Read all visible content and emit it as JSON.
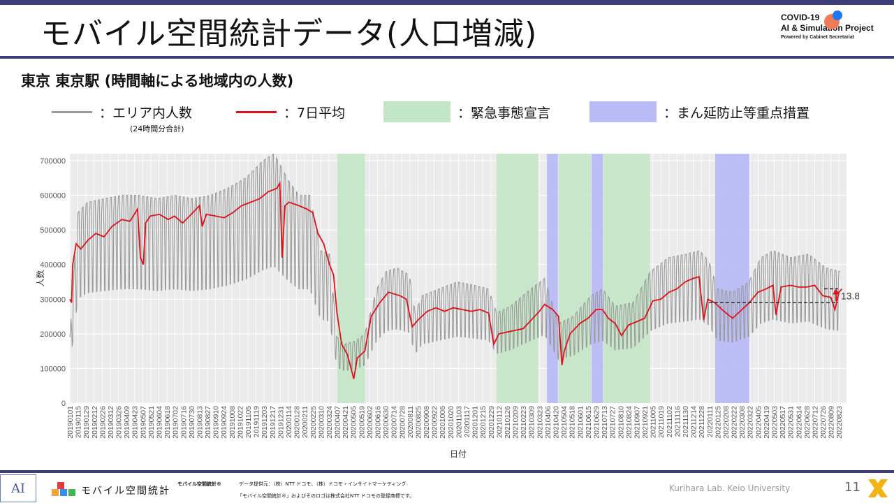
{
  "header": {
    "title": "モバイル空間統計データ(人口増減)",
    "brand_line1": "COVID-19",
    "brand_line2": "AI & Simulation Project",
    "brand_line3": "Powered by Cabinet Secretariat"
  },
  "subtitle": "東京 東京駅 (時間軸による地域内の人数)",
  "legend": {
    "raw_label": "：エリア内人数",
    "raw_note": "(24時間分合計)",
    "avg_label": "：7日平均",
    "emergency_label": "：緊急事態宣言",
    "priority_label": "：まん延防止等重点措置",
    "colors": {
      "raw": "#9a9a9a",
      "avg": "#e0101a",
      "emergency": "#c3e6c7",
      "priority": "#babaf5"
    }
  },
  "chart_data": {
    "type": "line",
    "xlabel": "日付",
    "ylabel": "人数",
    "ylim": [
      0,
      720000
    ],
    "yticks": [
      0,
      100000,
      200000,
      300000,
      400000,
      500000,
      600000,
      700000
    ],
    "ytick_labels": [
      "0",
      "100000",
      "200000",
      "300000",
      "400000",
      "500000",
      "600000",
      "700000"
    ],
    "xlim": [
      "2019-01-01",
      "2022-09-05"
    ],
    "grid": true,
    "xtick_labels": [
      "20190101",
      "20190115",
      "20190129",
      "20190212",
      "20190226",
      "20190312",
      "20190326",
      "20190409",
      "20190423",
      "20190507",
      "20190521",
      "20190604",
      "20190618",
      "20190702",
      "20190716",
      "20190730",
      "20190813",
      "20190827",
      "20190910",
      "20190924",
      "20191008",
      "20191022",
      "20191105",
      "20191119",
      "20191203",
      "20191217",
      "20191231",
      "20200114",
      "20200128",
      "20200211",
      "20200225",
      "20200310",
      "20200324",
      "20200407",
      "20200421",
      "20200505",
      "20200519",
      "20200602",
      "20200616",
      "20200630",
      "20200714",
      "20200728",
      "20200811",
      "20200825",
      "20200908",
      "20200922",
      "20201006",
      "20201020",
      "20201103",
      "20201117",
      "20201201",
      "20201215",
      "20201229",
      "20210112",
      "20210126",
      "20210209",
      "20210223",
      "20210309",
      "20210323",
      "20210406",
      "20210420",
      "20210504",
      "20210518",
      "20210601",
      "20210615",
      "20210629",
      "20210713",
      "20210727",
      "20210810",
      "20210824",
      "20210907",
      "20210921",
      "20211005",
      "20211019",
      "20211102",
      "20211116",
      "20211130",
      "20211214",
      "20211228",
      "20220111",
      "20220125",
      "20220208",
      "20220222",
      "20220308",
      "20220322",
      "20220405",
      "20220419",
      "20220503",
      "20220517",
      "20220531",
      "20220614",
      "20220628",
      "20220712",
      "20220726",
      "20220809",
      "20220823"
    ],
    "emergency_periods": [
      [
        "2020-04-07",
        "2020-05-25"
      ],
      [
        "2021-01-08",
        "2021-03-21"
      ],
      [
        "2021-04-25",
        "2021-06-20"
      ],
      [
        "2021-07-12",
        "2021-09-30"
      ]
    ],
    "priority_periods": [
      [
        "2021-04-05",
        "2021-04-24"
      ],
      [
        "2021-06-21",
        "2021-07-11"
      ],
      [
        "2022-01-21",
        "2022-03-21"
      ]
    ],
    "series": [
      {
        "name": "エリア内人数",
        "style": "raw",
        "points": [
          [
            "2019-01-01",
            190000
          ],
          [
            "2019-01-07",
            350000
          ],
          [
            "2019-01-15",
            550000
          ],
          [
            "2019-02-01",
            580000
          ],
          [
            "2019-03-01",
            590000
          ],
          [
            "2019-04-01",
            600000
          ],
          [
            "2019-05-01",
            600000
          ],
          [
            "2019-06-01",
            590000
          ],
          [
            "2019-07-01",
            600000
          ],
          [
            "2019-08-01",
            590000
          ],
          [
            "2019-09-01",
            600000
          ],
          [
            "2019-10-01",
            620000
          ],
          [
            "2019-11-01",
            650000
          ],
          [
            "2019-12-01",
            700000
          ],
          [
            "2019-12-20",
            720000
          ],
          [
            "2020-01-15",
            640000
          ],
          [
            "2020-02-01",
            600000
          ],
          [
            "2020-02-20",
            600000
          ],
          [
            "2020-03-10",
            440000
          ],
          [
            "2020-03-25",
            430000
          ],
          [
            "2020-04-07",
            190000
          ],
          [
            "2020-04-20",
            170000
          ],
          [
            "2020-05-10",
            180000
          ],
          [
            "2020-05-25",
            200000
          ],
          [
            "2020-06-15",
            330000
          ],
          [
            "2020-07-01",
            380000
          ],
          [
            "2020-07-20",
            390000
          ],
          [
            "2020-08-10",
            370000
          ],
          [
            "2020-08-20",
            260000
          ],
          [
            "2020-09-01",
            310000
          ],
          [
            "2020-10-01",
            330000
          ],
          [
            "2020-11-01",
            350000
          ],
          [
            "2020-12-01",
            340000
          ],
          [
            "2020-12-25",
            330000
          ],
          [
            "2021-01-08",
            260000
          ],
          [
            "2021-02-01",
            280000
          ],
          [
            "2021-03-01",
            320000
          ],
          [
            "2021-04-01",
            360000
          ],
          [
            "2021-04-25",
            230000
          ],
          [
            "2021-05-20",
            250000
          ],
          [
            "2021-06-20",
            310000
          ],
          [
            "2021-07-10",
            330000
          ],
          [
            "2021-08-01",
            280000
          ],
          [
            "2021-09-01",
            290000
          ],
          [
            "2021-10-01",
            380000
          ],
          [
            "2021-11-01",
            420000
          ],
          [
            "2021-12-01",
            430000
          ],
          [
            "2021-12-25",
            440000
          ],
          [
            "2022-01-10",
            410000
          ],
          [
            "2022-01-25",
            330000
          ],
          [
            "2022-02-20",
            320000
          ],
          [
            "2022-03-20",
            350000
          ],
          [
            "2022-04-10",
            420000
          ],
          [
            "2022-05-01",
            440000
          ],
          [
            "2022-06-01",
            420000
          ],
          [
            "2022-07-01",
            430000
          ],
          [
            "2022-08-01",
            390000
          ],
          [
            "2022-08-25",
            380000
          ]
        ]
      },
      {
        "name": "7日平均",
        "style": "avg",
        "points": [
          [
            "2019-01-01",
            300000
          ],
          [
            "2019-01-04",
            290000
          ],
          [
            "2019-01-06",
            400000
          ],
          [
            "2019-01-12",
            460000
          ],
          [
            "2019-01-20",
            445000
          ],
          [
            "2019-02-01",
            470000
          ],
          [
            "2019-02-15",
            490000
          ],
          [
            "2019-03-01",
            480000
          ],
          [
            "2019-03-15",
            510000
          ],
          [
            "2019-04-01",
            530000
          ],
          [
            "2019-04-15",
            525000
          ],
          [
            "2019-04-28",
            560000
          ],
          [
            "2019-05-03",
            420000
          ],
          [
            "2019-05-08",
            400000
          ],
          [
            "2019-05-12",
            520000
          ],
          [
            "2019-05-20",
            540000
          ],
          [
            "2019-06-05",
            545000
          ],
          [
            "2019-06-20",
            530000
          ],
          [
            "2019-07-01",
            540000
          ],
          [
            "2019-07-15",
            520000
          ],
          [
            "2019-07-30",
            545000
          ],
          [
            "2019-08-13",
            570000
          ],
          [
            "2019-08-18",
            510000
          ],
          [
            "2019-08-25",
            545000
          ],
          [
            "2019-09-10",
            540000
          ],
          [
            "2019-09-25",
            535000
          ],
          [
            "2019-10-10",
            550000
          ],
          [
            "2019-10-25",
            570000
          ],
          [
            "2019-11-10",
            580000
          ],
          [
            "2019-11-25",
            590000
          ],
          [
            "2019-12-10",
            610000
          ],
          [
            "2019-12-25",
            620000
          ],
          [
            "2019-12-30",
            635000
          ],
          [
            "2020-01-03",
            420000
          ],
          [
            "2020-01-08",
            570000
          ],
          [
            "2020-01-15",
            580000
          ],
          [
            "2020-02-01",
            570000
          ],
          [
            "2020-02-15",
            560000
          ],
          [
            "2020-02-25",
            550000
          ],
          [
            "2020-03-05",
            490000
          ],
          [
            "2020-03-15",
            460000
          ],
          [
            "2020-03-25",
            400000
          ],
          [
            "2020-04-01",
            370000
          ],
          [
            "2020-04-07",
            260000
          ],
          [
            "2020-04-15",
            170000
          ],
          [
            "2020-04-25",
            140000
          ],
          [
            "2020-05-06",
            70000
          ],
          [
            "2020-05-12",
            130000
          ],
          [
            "2020-05-25",
            150000
          ],
          [
            "2020-06-05",
            250000
          ],
          [
            "2020-06-20",
            290000
          ],
          [
            "2020-07-05",
            320000
          ],
          [
            "2020-07-25",
            310000
          ],
          [
            "2020-08-05",
            300000
          ],
          [
            "2020-08-15",
            220000
          ],
          [
            "2020-08-25",
            240000
          ],
          [
            "2020-09-10",
            265000
          ],
          [
            "2020-09-25",
            275000
          ],
          [
            "2020-10-10",
            265000
          ],
          [
            "2020-10-25",
            275000
          ],
          [
            "2020-11-10",
            270000
          ],
          [
            "2020-11-25",
            265000
          ],
          [
            "2020-12-10",
            270000
          ],
          [
            "2020-12-25",
            260000
          ],
          [
            "2021-01-03",
            170000
          ],
          [
            "2021-01-12",
            200000
          ],
          [
            "2021-01-26",
            205000
          ],
          [
            "2021-02-09",
            210000
          ],
          [
            "2021-02-23",
            215000
          ],
          [
            "2021-03-09",
            240000
          ],
          [
            "2021-03-23",
            265000
          ],
          [
            "2021-04-01",
            285000
          ],
          [
            "2021-04-15",
            270000
          ],
          [
            "2021-04-25",
            250000
          ],
          [
            "2021-05-01",
            110000
          ],
          [
            "2021-05-05",
            150000
          ],
          [
            "2021-05-15",
            200000
          ],
          [
            "2021-06-01",
            230000
          ],
          [
            "2021-06-15",
            245000
          ],
          [
            "2021-06-29",
            270000
          ],
          [
            "2021-07-10",
            270000
          ],
          [
            "2021-07-20",
            245000
          ],
          [
            "2021-08-01",
            230000
          ],
          [
            "2021-08-12",
            195000
          ],
          [
            "2021-08-24",
            225000
          ],
          [
            "2021-09-07",
            235000
          ],
          [
            "2021-09-21",
            245000
          ],
          [
            "2021-10-05",
            295000
          ],
          [
            "2021-10-19",
            300000
          ],
          [
            "2021-11-02",
            320000
          ],
          [
            "2021-11-16",
            330000
          ],
          [
            "2021-11-30",
            350000
          ],
          [
            "2021-12-14",
            360000
          ],
          [
            "2021-12-24",
            365000
          ],
          [
            "2022-01-01",
            240000
          ],
          [
            "2022-01-08",
            300000
          ],
          [
            "2022-01-20",
            290000
          ],
          [
            "2022-02-05",
            265000
          ],
          [
            "2022-02-20",
            245000
          ],
          [
            "2022-03-05",
            265000
          ],
          [
            "2022-03-21",
            290000
          ],
          [
            "2022-04-05",
            320000
          ],
          [
            "2022-04-19",
            330000
          ],
          [
            "2022-05-01",
            340000
          ],
          [
            "2022-05-06",
            255000
          ],
          [
            "2022-05-15",
            335000
          ],
          [
            "2022-05-31",
            340000
          ],
          [
            "2022-06-14",
            335000
          ],
          [
            "2022-06-28",
            335000
          ],
          [
            "2022-07-12",
            340000
          ],
          [
            "2022-07-26",
            310000
          ],
          [
            "2022-08-09",
            305000
          ],
          [
            "2022-08-16",
            270000
          ],
          [
            "2022-08-23",
            320000
          ],
          [
            "2022-08-28",
            330000
          ]
        ]
      }
    ],
    "annotation": {
      "text": "13.8%",
      "from": 290000,
      "to": 330000
    }
  },
  "footer": {
    "brand_text": "モバイル空間統計",
    "brand_mark": "モバイル空間統計®",
    "source_line1": "データ提供元：（株）NTT ドコモ、（株）ドコモ・インサイトマーケティング",
    "source_line2": "「モバイル空間統計®」およびそのロゴは株式会社NTT ドコモの登録商標です。",
    "lab": "Kurihara Lab. Keio University",
    "page": "11"
  }
}
